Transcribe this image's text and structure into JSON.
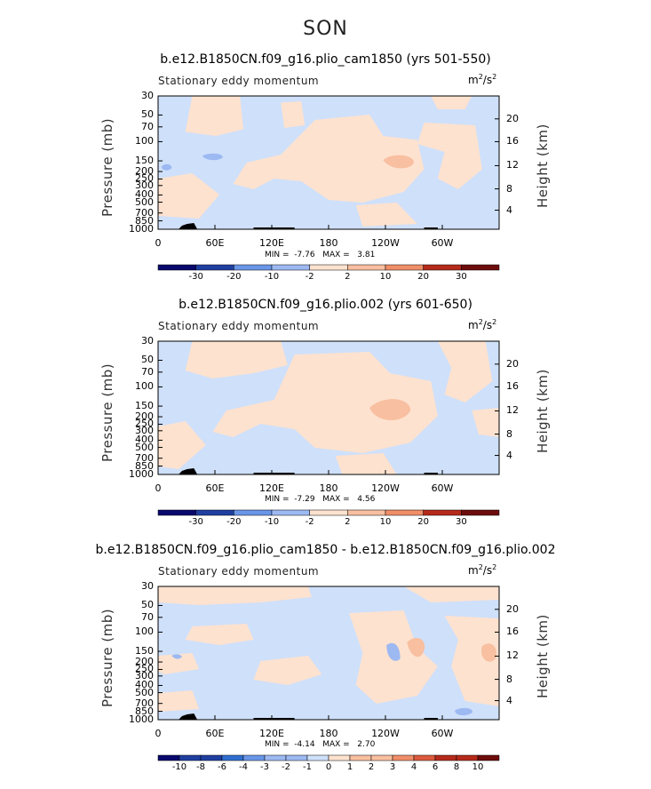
{
  "season": "SON",
  "colors": {
    "palette12": [
      "#08086e",
      "#1f3fa0",
      "#2f6ed0",
      "#6a96e8",
      "#9db9f2",
      "#cfe0fa",
      "#fde2cf",
      "#f8bfa0",
      "#f08e68",
      "#dc5a3c",
      "#b52a1a",
      "#6e0c0c"
    ],
    "neg_fill": "#cfe0fa",
    "pos_fill": "#fde2cf",
    "neg_dark": "#9db9f2",
    "pos_dark": "#f8bfa0"
  },
  "chart_data": [
    {
      "type": "heatmap",
      "title": "b.e12.B1850CN.f09_g16.plio_cam1850 (yrs 501-550)",
      "left_label": "Stationary eddy momentum",
      "units": "m",
      "units_sup1": "2",
      "units_mid": "/s",
      "units_sup2": "2",
      "ylabel": "Pressure (mb)",
      "y2label": "Height (km)",
      "yticks": [
        "30",
        "50",
        "70",
        "100",
        "150",
        "200",
        "250",
        "300",
        "400",
        "500",
        "700",
        "850",
        "1000"
      ],
      "y2ticks": [
        "20",
        "16",
        "12",
        "8",
        "4"
      ],
      "xticks": [
        "0",
        "60E",
        "120E",
        "180",
        "120W",
        "60W"
      ],
      "min_label": "MIN =",
      "min_value": "-7.76",
      "max_label": "MAX =",
      "max_value": "3.81",
      "colorbar_ticks": [
        "-30",
        "-20",
        "-10",
        "-2",
        "2",
        "10",
        "20",
        "30"
      ]
    },
    {
      "type": "heatmap",
      "title": "b.e12.B1850CN.f09_g16.plio.002 (yrs 601-650)",
      "left_label": "Stationary eddy momentum",
      "units": "m",
      "units_sup1": "2",
      "units_mid": "/s",
      "units_sup2": "2",
      "ylabel": "Pressure (mb)",
      "y2label": "Height (km)",
      "yticks": [
        "30",
        "50",
        "70",
        "100",
        "150",
        "200",
        "250",
        "300",
        "400",
        "500",
        "700",
        "850",
        "1000"
      ],
      "y2ticks": [
        "20",
        "16",
        "12",
        "8",
        "4"
      ],
      "xticks": [
        "0",
        "60E",
        "120E",
        "180",
        "120W",
        "60W"
      ],
      "min_label": "MIN =",
      "min_value": "-7.29",
      "max_label": "MAX =",
      "max_value": "4.56",
      "colorbar_ticks": [
        "-30",
        "-20",
        "-10",
        "-2",
        "2",
        "10",
        "20",
        "30"
      ]
    },
    {
      "type": "heatmap",
      "title": "b.e12.B1850CN.f09_g16.plio_cam1850 - b.e12.B1850CN.f09_g16.plio.002",
      "left_label": "Stationary eddy momentum",
      "units": "m",
      "units_sup1": "2",
      "units_mid": "/s",
      "units_sup2": "2",
      "ylabel": "Pressure (mb)",
      "y2label": "Height (km)",
      "yticks": [
        "30",
        "50",
        "70",
        "100",
        "150",
        "200",
        "250",
        "300",
        "400",
        "500",
        "700",
        "850",
        "1000"
      ],
      "y2ticks": [
        "20",
        "16",
        "12",
        "8",
        "4"
      ],
      "xticks": [
        "0",
        "60E",
        "120E",
        "180",
        "120W",
        "60W"
      ],
      "min_label": "MIN =",
      "min_value": "-4.14",
      "max_label": "MAX =",
      "max_value": "2.70",
      "colorbar_ticks": [
        "-10",
        "-8",
        "-6",
        "-4",
        "-3",
        "-2",
        "-1",
        "0",
        "1",
        "2",
        "3",
        "4",
        "6",
        "8",
        "10"
      ]
    }
  ]
}
